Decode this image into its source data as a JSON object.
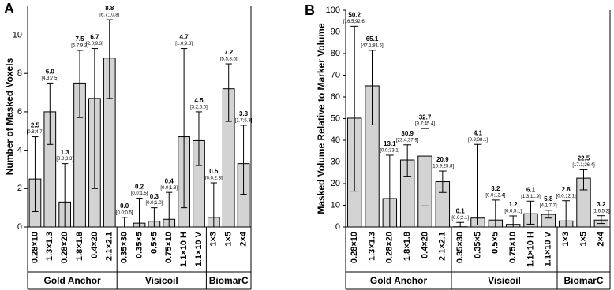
{
  "chart_data": [
    {
      "type": "bar",
      "panel_label": "A",
      "ylabel": "Number of Masked Voxels",
      "categories": [
        "0.28×10",
        "1.3×1.3",
        "0.28×20",
        "1.8×1.8",
        "0.4×20",
        "2.1×2.1",
        "0.35×30",
        "0.35×5",
        "0.5×5",
        "0.75×10",
        "1.1×10 H",
        "1.1×10 V",
        "1×3",
        "1×5",
        "2×4"
      ],
      "groups": [
        {
          "name": "Gold Anchor",
          "size": 6
        },
        {
          "name": "Visicoil",
          "size": 6
        },
        {
          "name": "BiomarC",
          "size": 3
        }
      ],
      "values": [
        2.5,
        6.0,
        1.3,
        7.5,
        6.7,
        8.8,
        0.0,
        0.2,
        0.3,
        0.4,
        4.7,
        4.5,
        0.5,
        7.2,
        3.3
      ],
      "value_labels": [
        "2.5",
        "6.0",
        "1.3",
        "7.5",
        "6.7",
        "8.8",
        "0.0",
        "0.2",
        "0.3",
        "0.4",
        "4.7",
        "4.5",
        "0.5",
        "7.2",
        "3.3"
      ],
      "lower": [
        0.8,
        4.3,
        0.0,
        5.7,
        2.0,
        6.7,
        0.0,
        0.0,
        0.0,
        0.0,
        1.0,
        3.2,
        0.0,
        5.5,
        1.7
      ],
      "upper": [
        4.7,
        7.5,
        3.3,
        9.2,
        9.3,
        10.8,
        0.5,
        1.5,
        1.0,
        1.8,
        9.3,
        6.0,
        2.3,
        8.5,
        5.3
      ],
      "ci_labels": [
        "[0.8;4.7]",
        "[4.3;7.5]",
        "[0.0;3.3]",
        "[5.7;9.2]",
        "[2.0;9.3]",
        "[6.7;10.8]",
        "[0.0;0.5]",
        "[0.0;1.5]",
        "[0.0;1.0]",
        "[0.0;1.8]",
        "[1.0;9.3]",
        "[3.2;6.0]",
        "[0.0;2.3]",
        "[5.5;8.5]",
        "[1.7;5.3]"
      ],
      "color": "#d3d3d3",
      "ylim": [
        0,
        11.5
      ],
      "yticks": [
        0,
        2,
        4,
        6,
        8,
        10
      ]
    },
    {
      "type": "bar",
      "panel_label": "B",
      "ylabel": "Masked Volume Relative to Marker Volume",
      "categories": [
        "0.28×10",
        "1.3×1.3",
        "0.28×20",
        "1.8×1.8",
        "0.4×20",
        "2.1×2.1",
        "0.35×30",
        "0.35×5",
        "0.5×5",
        "0.75×10",
        "1.1×10 H",
        "1.1×10 V",
        "1×3",
        "1×5",
        "2×4"
      ],
      "groups": [
        {
          "name": "Gold Anchor",
          "size": 6
        },
        {
          "name": "Visicoil",
          "size": 6
        },
        {
          "name": "BiomarC",
          "size": 3
        }
      ],
      "values": [
        50.2,
        65.1,
        13.1,
        30.9,
        32.7,
        20.9,
        0.1,
        4.1,
        3.2,
        1.2,
        6.1,
        5.8,
        2.8,
        22.5,
        3.2
      ],
      "value_labels": [
        "50.2",
        "65.1",
        "13.1",
        "30.9",
        "32.7",
        "20.9",
        "0.1",
        "4.1",
        "3.2",
        "1.2",
        "6.1",
        "5.8",
        "2.8",
        "22.5",
        "3.2"
      ],
      "lower": [
        16.5,
        47.1,
        0.0,
        23.4,
        9.7,
        15.9,
        0.0,
        0.9,
        0.0,
        0.0,
        1.3,
        4.1,
        0.0,
        17.1,
        1.6
      ],
      "upper": [
        92.6,
        81.5,
        33.1,
        37.9,
        45.4,
        25.8,
        2.1,
        38.1,
        12.4,
        5.1,
        11.9,
        7.7,
        12.1,
        26.4,
        5.2
      ],
      "ci_labels": [
        "[16.5;92.6]",
        "[47.1;81.5]",
        "[0.0;33.1]",
        "[23.4;37.9]",
        "[9.7;45.4]",
        "[15.9;25.8]",
        "[0.0;2.1]",
        "[0.9;38.1]",
        "[0.0;12.4]",
        "[0.0;5.1]",
        "[1.3;11.9]",
        "[4.1;7.7]",
        "[0.0;12.1]",
        "[17.1;26.4]",
        "[1.6;5.2]"
      ],
      "color": "#d3d3d3",
      "ylim": [
        0,
        100
      ],
      "yticks": [
        0,
        10,
        20,
        30,
        40,
        50,
        60,
        70,
        80,
        90,
        100
      ]
    }
  ]
}
